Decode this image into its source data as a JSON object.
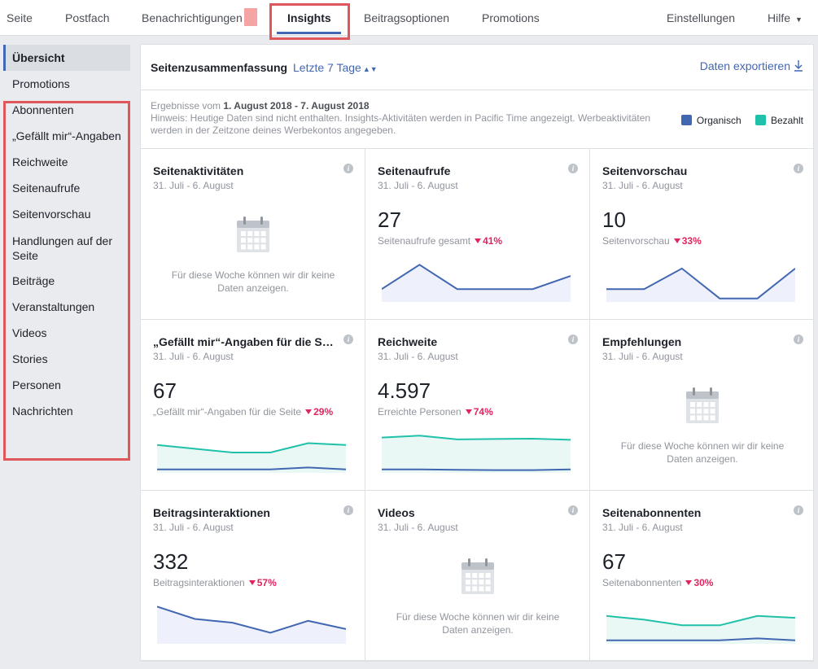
{
  "nav": {
    "seite": "Seite",
    "postfach": "Postfach",
    "benachrichtigungen": "Benachrichtigungen",
    "insights": "Insights",
    "beitragsoptionen": "Beitragsoptionen",
    "promotions": "Promotions",
    "einstellungen": "Einstellungen",
    "hilfe": "Hilfe"
  },
  "sidebar": {
    "items": [
      {
        "label": "Übersicht"
      },
      {
        "label": "Promotions"
      },
      {
        "label": "Abonnenten"
      },
      {
        "label": "„Gefällt mir“-Angaben"
      },
      {
        "label": "Reichweite"
      },
      {
        "label": "Seitenaufrufe"
      },
      {
        "label": "Seitenvorschau"
      },
      {
        "label": "Handlungen auf der Seite"
      },
      {
        "label": "Beiträge"
      },
      {
        "label": "Veranstaltungen"
      },
      {
        "label": "Videos"
      },
      {
        "label": "Stories"
      },
      {
        "label": "Personen"
      },
      {
        "label": "Nachrichten"
      }
    ]
  },
  "header": {
    "title": "Seitenzusammenfassung",
    "range": "Letzte 7 Tage",
    "export": "Daten exportieren"
  },
  "info": {
    "results_prefix": "Ergebnisse vom ",
    "results_range": "1. August 2018 - 7. August 2018",
    "hint": "Hinweis: Heutige Daten sind nicht enthalten. Insights-Aktivitäten werden in Pacific Time angezeigt. Werbeaktivitäten werden in der Zeitzone deines Werbekontos angegeben."
  },
  "legend": {
    "organic": "Organisch",
    "paid": "Bezahlt",
    "organic_color": "#4267b2",
    "paid_color": "#20c1a9"
  },
  "cards": [
    {
      "title": "Seitenaktivitäten",
      "date": "31. Juli - 6. August",
      "empty_text": "Für diese Woche können wir dir keine Daten anzeigen."
    },
    {
      "title": "Seitenaufrufe",
      "date": "31. Juli - 6. August",
      "value": "27",
      "sub": "Seitenaufrufe gesamt",
      "delta": "41%",
      "organic": [
        0.3,
        0.95,
        0.3,
        0.3,
        0.3,
        0.65
      ]
    },
    {
      "title": "Seitenvorschau",
      "date": "31. Juli - 6. August",
      "value": "10",
      "sub": "Seitenvorschau",
      "delta": "33%",
      "organic": [
        0.3,
        0.3,
        0.85,
        0.05,
        0.05,
        0.85
      ]
    },
    {
      "title": "„Gefällt mir“-Angaben für die Seite",
      "date": "31. Juli - 6. August",
      "value": "67",
      "sub": "„Gefällt mir“-Angaben für die Seite",
      "delta": "29%",
      "organic": [
        0.05,
        0.05,
        0.05,
        0.05,
        0.1,
        0.05
      ],
      "paid": [
        0.7,
        0.6,
        0.5,
        0.5,
        0.75,
        0.7
      ]
    },
    {
      "title": "Reichweite",
      "date": "31. Juli - 6. August",
      "value": "4.597",
      "sub": "Erreichte Personen",
      "delta": "74%",
      "organic": [
        0.05,
        0.05,
        0.04,
        0.03,
        0.03,
        0.05
      ],
      "paid": [
        0.9,
        0.95,
        0.85,
        0.86,
        0.87,
        0.84
      ]
    },
    {
      "title": "Empfehlungen",
      "date": "31. Juli - 6. August",
      "empty_text": "Für diese Woche können wir dir keine Daten anzeigen."
    },
    {
      "title": "Beitragsinteraktionen",
      "date": "31. Juli - 6. August",
      "value": "332",
      "sub": "Beitragsinteraktionen",
      "delta": "57%",
      "organic": [
        0.95,
        0.62,
        0.52,
        0.25,
        0.57,
        0.35
      ]
    },
    {
      "title": "Videos",
      "date": "31. Juli - 6. August",
      "empty_text": "Für diese Woche können wir dir keine Daten anzeigen."
    },
    {
      "title": "Seitenabonnenten",
      "date": "31. Juli - 6. August",
      "value": "67",
      "sub": "Seitenabonnenten",
      "delta": "30%",
      "organic": [
        0.05,
        0.05,
        0.05,
        0.05,
        0.1,
        0.05
      ],
      "paid": [
        0.7,
        0.6,
        0.45,
        0.45,
        0.7,
        0.65
      ]
    }
  ]
}
